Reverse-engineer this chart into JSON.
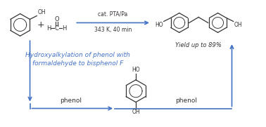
{
  "bg_color": "#ffffff",
  "arrow_color": "#4472c4",
  "structure_color": "#333333",
  "reaction_arrow_text1": "cat. PTA/Pa",
  "reaction_arrow_text2": "343 K, 40 min",
  "italic_text1": "Hydroxyalkylation of phenol with",
  "italic_text2": "formaldehyde to bisphenol F",
  "yield_text": "Yield up to 89%",
  "phenol_label": "phenol",
  "figsize": [
    3.78,
    1.81
  ],
  "dpi": 100
}
